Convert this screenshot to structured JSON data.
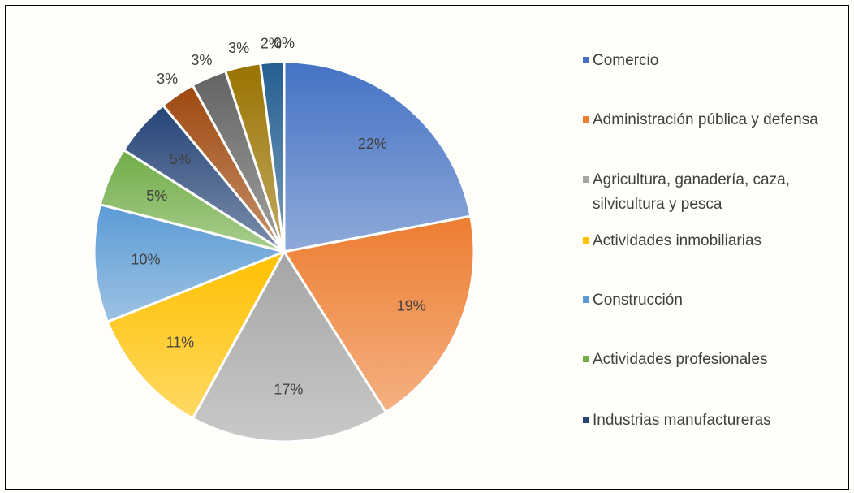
{
  "chart_data": {
    "type": "pie",
    "categories": [
      "Comercio",
      "Administración pública y defensa",
      "Agricultura, ganadería, caza, silvicultura y pesca",
      "Actividades inmobiliarias",
      "Construcción",
      "Actividades profesionales",
      "Industrias manufactureras",
      null,
      null,
      null,
      null,
      null
    ],
    "values": [
      22,
      19,
      17,
      11,
      10,
      5,
      5,
      3,
      3,
      3,
      2,
      0
    ],
    "value_labels": [
      "22%",
      "19%",
      "17%",
      "11%",
      "10%",
      "5%",
      "5%",
      "3%",
      "3%",
      "3%",
      "2%",
      "0%"
    ],
    "colors": [
      "#4472c4",
      "#ed7d31",
      "#a5a5a5",
      "#ffc000",
      "#5b9bd5",
      "#70ad47",
      "#264478",
      "#9e480e",
      "#636363",
      "#997300",
      "#255e91",
      "#43682b"
    ],
    "legend": "right"
  }
}
